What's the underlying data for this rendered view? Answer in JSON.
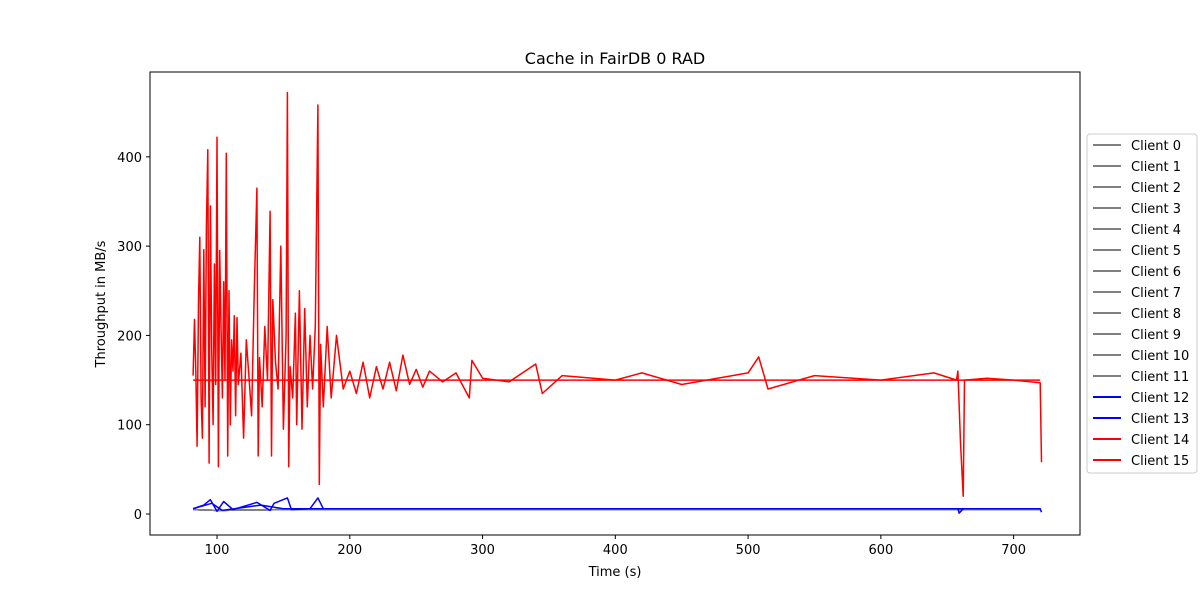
{
  "chart_data": {
    "type": "line",
    "title": "Cache in  FairDB 0 RAD",
    "xlabel": "Time (s)",
    "ylabel": "Throughput in MB/s",
    "xlim": [
      49.5,
      750
    ],
    "ylim": [
      -23.5,
      495
    ],
    "xticks": [
      100,
      200,
      300,
      400,
      500,
      600,
      700
    ],
    "yticks": [
      0,
      100,
      200,
      300,
      400
    ],
    "grid": false,
    "legend_position": "outside-right",
    "colors": {
      "gray": "#808080",
      "blue": "#0000ff",
      "red": "#ff0000"
    },
    "series": [
      {
        "name": "Client 0",
        "color": "#808080",
        "values": [
          [
            82,
            5
          ],
          [
            100,
            4
          ],
          [
            150,
            5
          ],
          [
            200,
            5
          ],
          [
            720,
            5
          ]
        ]
      },
      {
        "name": "Client 1",
        "color": "#808080",
        "values": [
          [
            82,
            5
          ],
          [
            100,
            4
          ],
          [
            150,
            5
          ],
          [
            200,
            5
          ],
          [
            720,
            5
          ]
        ]
      },
      {
        "name": "Client 2",
        "color": "#808080",
        "values": [
          [
            82,
            5
          ],
          [
            100,
            4
          ],
          [
            150,
            5
          ],
          [
            200,
            5
          ],
          [
            720,
            5
          ]
        ]
      },
      {
        "name": "Client 3",
        "color": "#808080",
        "values": [
          [
            82,
            5
          ],
          [
            100,
            4
          ],
          [
            150,
            5
          ],
          [
            200,
            5
          ],
          [
            720,
            5
          ]
        ]
      },
      {
        "name": "Client 4",
        "color": "#808080",
        "values": [
          [
            82,
            5
          ],
          [
            100,
            4
          ],
          [
            150,
            5
          ],
          [
            200,
            5
          ],
          [
            720,
            5
          ]
        ]
      },
      {
        "name": "Client 5",
        "color": "#808080",
        "values": [
          [
            82,
            5
          ],
          [
            100,
            4
          ],
          [
            150,
            5
          ],
          [
            200,
            5
          ],
          [
            720,
            5
          ]
        ]
      },
      {
        "name": "Client 6",
        "color": "#808080",
        "values": [
          [
            82,
            5
          ],
          [
            100,
            4
          ],
          [
            150,
            5
          ],
          [
            200,
            5
          ],
          [
            720,
            5
          ]
        ]
      },
      {
        "name": "Client 7",
        "color": "#808080",
        "values": [
          [
            82,
            5
          ],
          [
            100,
            4
          ],
          [
            150,
            5
          ],
          [
            200,
            5
          ],
          [
            720,
            5
          ]
        ]
      },
      {
        "name": "Client 8",
        "color": "#808080",
        "values": [
          [
            82,
            5
          ],
          [
            100,
            4
          ],
          [
            150,
            5
          ],
          [
            200,
            5
          ],
          [
            720,
            5
          ]
        ]
      },
      {
        "name": "Client 9",
        "color": "#808080",
        "values": [
          [
            82,
            5
          ],
          [
            100,
            4
          ],
          [
            150,
            5
          ],
          [
            200,
            5
          ],
          [
            720,
            5
          ]
        ]
      },
      {
        "name": "Client 10",
        "color": "#808080",
        "values": [
          [
            82,
            5
          ],
          [
            100,
            4
          ],
          [
            150,
            5
          ],
          [
            200,
            5
          ],
          [
            720,
            5
          ]
        ]
      },
      {
        "name": "Client 11",
        "color": "#808080",
        "values": [
          [
            82,
            5
          ],
          [
            100,
            4
          ],
          [
            150,
            5
          ],
          [
            200,
            5
          ],
          [
            720,
            5
          ]
        ]
      },
      {
        "name": "Client 12",
        "color": "#0000ff",
        "values": [
          [
            82,
            6
          ],
          [
            90,
            10
          ],
          [
            95,
            16
          ],
          [
            100,
            3
          ],
          [
            105,
            14
          ],
          [
            112,
            5
          ],
          [
            130,
            13
          ],
          [
            140,
            4
          ],
          [
            143,
            12
          ],
          [
            153,
            18
          ],
          [
            156,
            5
          ],
          [
            170,
            6
          ],
          [
            176,
            18
          ],
          [
            180,
            6
          ],
          [
            200,
            6
          ],
          [
            300,
            6
          ],
          [
            500,
            6
          ],
          [
            658,
            6
          ],
          [
            659,
            1
          ],
          [
            662,
            6
          ],
          [
            720,
            6
          ],
          [
            721,
            2
          ]
        ]
      },
      {
        "name": "Client 13",
        "color": "#0000ff",
        "values": [
          [
            82,
            6
          ],
          [
            96,
            12
          ],
          [
            104,
            4
          ],
          [
            133,
            10
          ],
          [
            150,
            6
          ],
          [
            200,
            6
          ],
          [
            720,
            6
          ]
        ]
      },
      {
        "name": "Client 14",
        "color": "#ff0000",
        "values": [
          [
            82,
            155
          ],
          [
            83,
            218
          ],
          [
            84,
            160
          ],
          [
            85,
            76
          ],
          [
            86,
            238
          ],
          [
            87,
            310
          ],
          [
            88,
            130
          ],
          [
            89,
            85
          ],
          [
            90,
            296
          ],
          [
            91,
            120
          ],
          [
            92,
            322
          ],
          [
            93,
            408
          ],
          [
            94,
            57
          ],
          [
            95,
            345
          ],
          [
            96,
            185
          ],
          [
            97,
            100
          ],
          [
            98,
            280
          ],
          [
            99,
            145
          ],
          [
            100,
            422
          ],
          [
            101,
            53
          ],
          [
            102,
            295
          ],
          [
            103,
            210
          ],
          [
            104,
            130
          ],
          [
            105,
            260
          ],
          [
            106,
            150
          ],
          [
            107,
            404
          ],
          [
            108,
            65
          ],
          [
            109,
            250
          ],
          [
            110,
            100
          ],
          [
            111,
            195
          ],
          [
            112,
            160
          ],
          [
            113,
            222
          ],
          [
            114,
            110
          ],
          [
            115,
            220
          ],
          [
            116,
            145
          ],
          [
            118,
            180
          ],
          [
            120,
            85
          ],
          [
            122,
            195
          ],
          [
            124,
            155
          ],
          [
            126,
            110
          ],
          [
            128,
            246
          ],
          [
            130,
            365
          ],
          [
            131,
            65
          ],
          [
            132,
            175
          ],
          [
            134,
            120
          ],
          [
            136,
            210
          ],
          [
            138,
            150
          ],
          [
            140,
            339
          ],
          [
            141,
            65
          ],
          [
            142,
            240
          ],
          [
            144,
            170
          ],
          [
            146,
            140
          ],
          [
            148,
            300
          ],
          [
            150,
            95
          ],
          [
            152,
            200
          ],
          [
            153,
            472
          ],
          [
            154,
            53
          ],
          [
            155,
            165
          ],
          [
            157,
            130
          ],
          [
            159,
            225
          ],
          [
            160,
            100
          ],
          [
            162,
            250
          ],
          [
            164,
            95
          ],
          [
            166,
            230
          ],
          [
            168,
            120
          ],
          [
            170,
            200
          ],
          [
            172,
            140
          ],
          [
            174,
            210
          ],
          [
            176,
            458
          ],
          [
            177,
            33
          ],
          [
            178,
            190
          ],
          [
            180,
            120
          ],
          [
            183,
            210
          ],
          [
            186,
            130
          ],
          [
            190,
            200
          ],
          [
            195,
            140
          ],
          [
            200,
            160
          ],
          [
            205,
            135
          ],
          [
            210,
            170
          ],
          [
            215,
            130
          ],
          [
            220,
            165
          ],
          [
            225,
            140
          ],
          [
            230,
            170
          ],
          [
            235,
            138
          ],
          [
            240,
            178
          ],
          [
            245,
            145
          ],
          [
            250,
            162
          ],
          [
            255,
            142
          ],
          [
            260,
            160
          ],
          [
            270,
            148
          ],
          [
            280,
            158
          ],
          [
            290,
            130
          ],
          [
            292,
            172
          ],
          [
            300,
            152
          ],
          [
            320,
            148
          ],
          [
            340,
            168
          ],
          [
            345,
            135
          ],
          [
            360,
            155
          ],
          [
            400,
            150
          ],
          [
            420,
            158
          ],
          [
            450,
            145
          ],
          [
            500,
            158
          ],
          [
            508,
            176
          ],
          [
            515,
            140
          ],
          [
            550,
            155
          ],
          [
            600,
            150
          ],
          [
            640,
            158
          ],
          [
            657,
            150
          ],
          [
            658,
            160
          ],
          [
            660,
            80
          ],
          [
            662,
            20
          ],
          [
            663,
            150
          ],
          [
            680,
            152
          ],
          [
            700,
            150
          ],
          [
            720,
            147
          ],
          [
            721,
            58
          ]
        ]
      },
      {
        "name": "Client 15",
        "color": "#ff0000",
        "values": [
          [
            82,
            150
          ],
          [
            100,
            150
          ],
          [
            150,
            150
          ],
          [
            200,
            150
          ],
          [
            720,
            150
          ]
        ]
      }
    ]
  }
}
